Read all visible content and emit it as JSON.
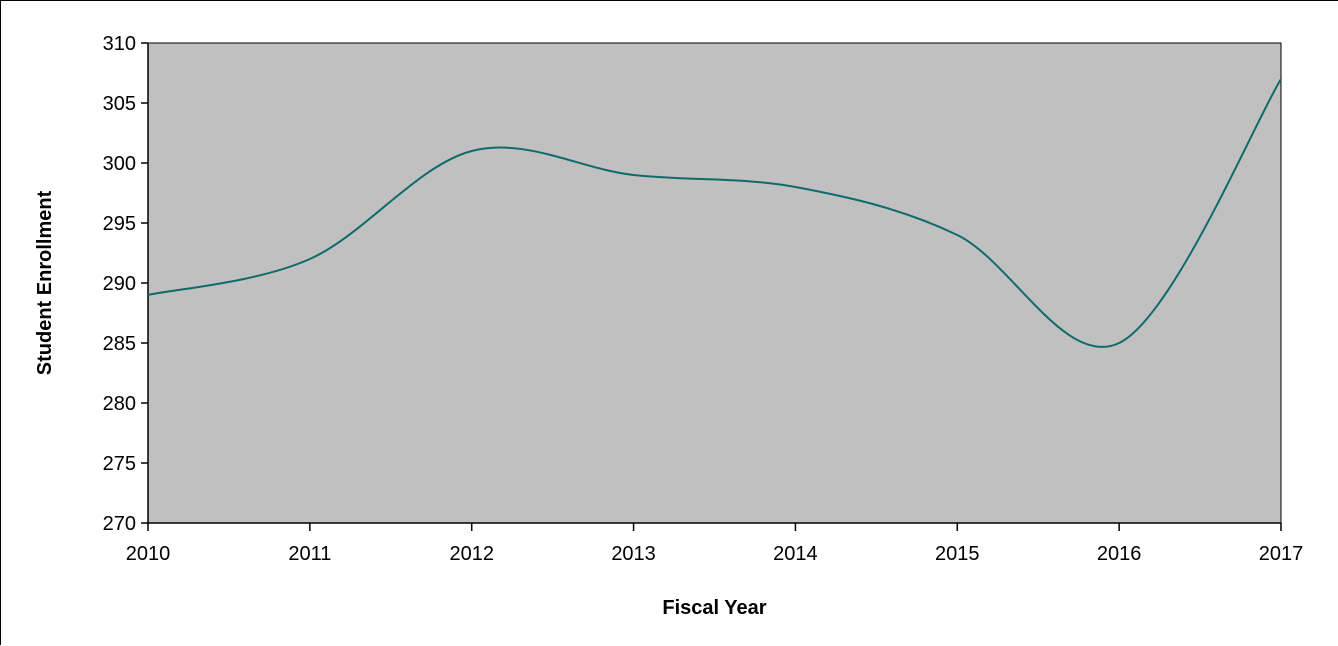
{
  "chart_data": {
    "type": "line",
    "title": "",
    "xlabel": "Fiscal Year",
    "ylabel": "Student Enrollment",
    "x": [
      "2010",
      "2011",
      "2012",
      "2013",
      "2014",
      "2015",
      "2016",
      "2017"
    ],
    "series": [
      {
        "values": [
          289,
          292,
          301,
          299,
          298,
          294,
          285,
          307
        ]
      }
    ],
    "ylim": [
      270,
      310
    ],
    "yticks": [
      270,
      275,
      280,
      285,
      290,
      295,
      300,
      305,
      310
    ],
    "smooth": true,
    "grid": false,
    "legend": "none",
    "colors": {
      "plot_background": "#c0c0c0",
      "line": "#0f6b6b",
      "axis": "#000000"
    }
  }
}
